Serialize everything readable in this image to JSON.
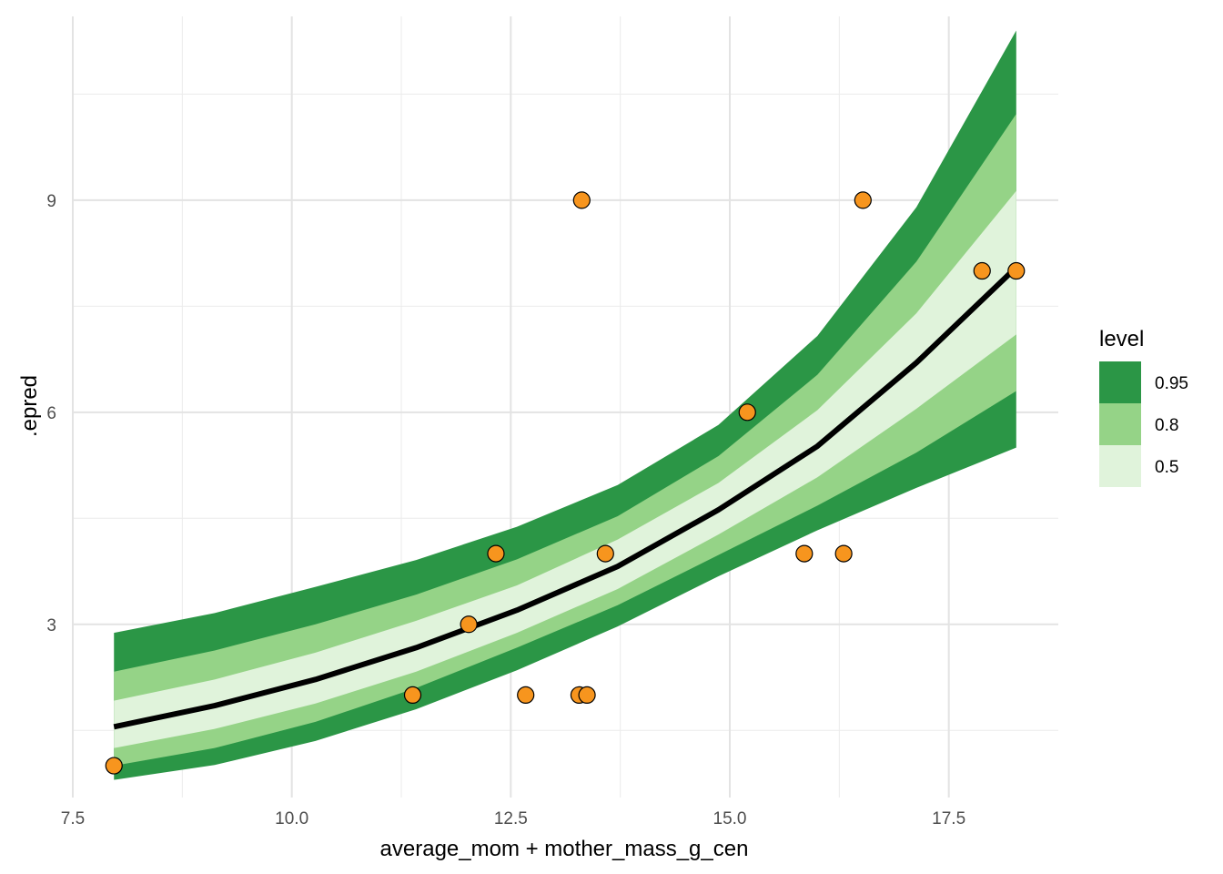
{
  "chart_data": {
    "type": "line",
    "title": "",
    "xlabel": "average_mom + mother_mass_g_cen",
    "ylabel": ".epred",
    "xlim": [
      7.5,
      18.75
    ],
    "ylim": [
      0.55,
      11.6
    ],
    "x_ticks": [
      7.5,
      10.0,
      12.5,
      15.0,
      17.5
    ],
    "x_tick_labels": [
      "7.5",
      "10.0",
      "12.5",
      "15.0",
      "17.5"
    ],
    "y_ticks": [
      3,
      6,
      9
    ],
    "y_tick_labels": [
      "3",
      "6",
      "9"
    ],
    "grid": true,
    "legend": {
      "title": "level",
      "placement": "right",
      "entries": [
        {
          "label": "0.95",
          "color": "#2b9646"
        },
        {
          "label": "0.8",
          "color": "#95d387"
        },
        {
          "label": "0.5",
          "color": "#e0f3db"
        }
      ]
    },
    "bands": [
      {
        "level": "0.95",
        "color": "#2b9646",
        "x": [
          7.97,
          9.12,
          10.27,
          11.42,
          12.57,
          13.72,
          14.87,
          16.0,
          17.13,
          18.27
        ],
        "lower": [
          0.8,
          1.01,
          1.35,
          1.8,
          2.35,
          2.97,
          3.68,
          4.33,
          4.93,
          5.5
        ],
        "upper": [
          2.88,
          3.16,
          3.53,
          3.91,
          4.38,
          4.97,
          5.82,
          7.08,
          8.9,
          11.4
        ]
      },
      {
        "level": "0.8",
        "color": "#95d387",
        "x": [
          7.97,
          9.12,
          10.27,
          11.42,
          12.57,
          13.72,
          14.87,
          16.0,
          17.13,
          18.27
        ],
        "lower": [
          1.0,
          1.25,
          1.62,
          2.1,
          2.67,
          3.27,
          3.98,
          4.68,
          5.43,
          6.3
        ],
        "upper": [
          2.33,
          2.63,
          3.0,
          3.42,
          3.92,
          4.53,
          5.38,
          6.53,
          8.13,
          10.22
        ]
      },
      {
        "level": "0.5",
        "color": "#e0f3db",
        "x": [
          7.97,
          9.12,
          10.27,
          11.42,
          12.57,
          13.72,
          14.87,
          16.0,
          17.13,
          18.27
        ],
        "lower": [
          1.25,
          1.52,
          1.88,
          2.33,
          2.88,
          3.5,
          4.27,
          5.08,
          6.05,
          7.1
        ],
        "upper": [
          1.92,
          2.22,
          2.6,
          3.05,
          3.55,
          4.2,
          5.0,
          6.03,
          7.4,
          9.13
        ]
      }
    ],
    "series": [
      {
        "x": [
          7.97,
          9.12,
          10.27,
          11.42,
          12.57,
          13.72,
          14.87,
          16.0,
          17.13,
          18.27
        ],
        "values": [
          1.55,
          1.85,
          2.22,
          2.67,
          3.2,
          3.82,
          4.62,
          5.52,
          6.7,
          8.05
        ],
        "color": "#000000"
      }
    ],
    "points": {
      "color": "#f7951e",
      "stroke": "#000000",
      "x": [
        7.97,
        11.38,
        12.02,
        12.33,
        12.67,
        13.28,
        13.31,
        13.37,
        13.58,
        15.2,
        15.85,
        16.3,
        16.52,
        17.88,
        18.27
      ],
      "y": [
        1,
        2,
        3,
        4,
        2,
        2,
        9,
        2,
        4,
        6,
        4,
        4,
        9,
        8,
        8
      ]
    }
  }
}
